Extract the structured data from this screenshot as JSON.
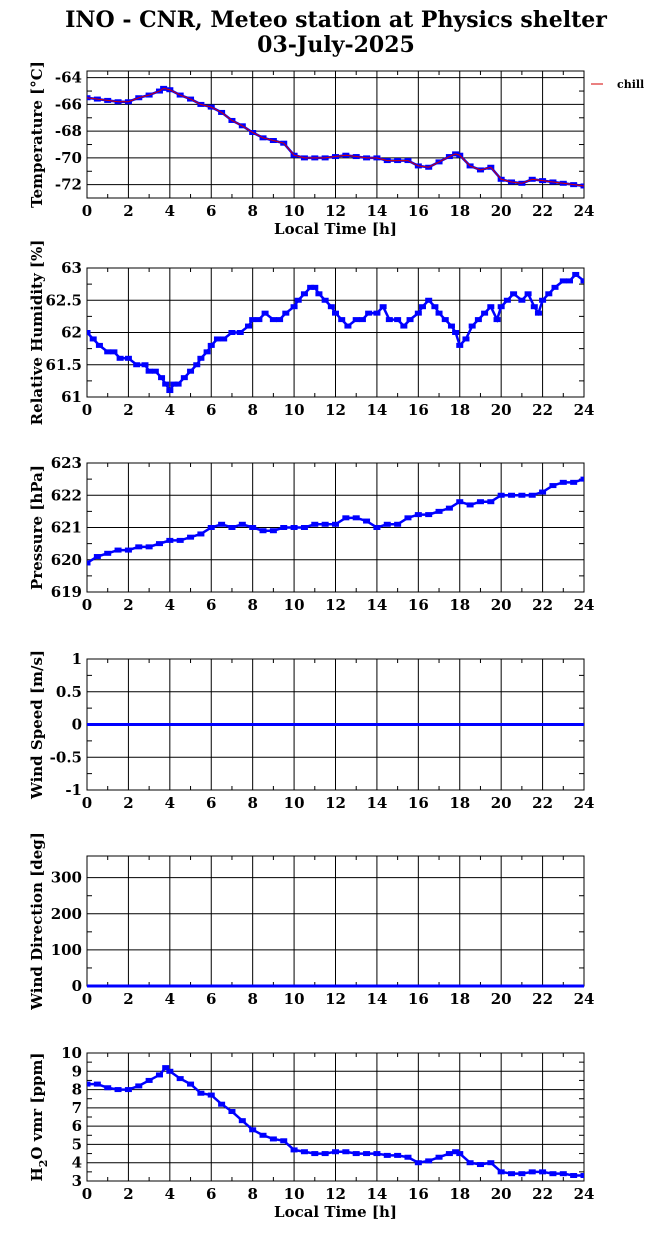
{
  "title_line1": "INO - CNR, Meteo station at Physics shelter",
  "title_line2": "03-July-2025",
  "x_axis_label": "Local Time [h]",
  "colors": {
    "data": "#0000ff",
    "chill": "#d40000",
    "axis": "#000000"
  },
  "chart_data": [
    {
      "type": "scatter",
      "ylabel": "Temperature [°C]",
      "xlim": [
        0,
        24
      ],
      "ylim": [
        -73,
        -63.5
      ],
      "x_ticks": [
        0,
        2,
        4,
        6,
        8,
        10,
        12,
        14,
        16,
        18,
        20,
        22,
        24
      ],
      "y_ticks": [
        -64,
        -66,
        -68,
        -70,
        -72
      ],
      "show_xlabel": true,
      "legend": {
        "label": "chill",
        "position": "outside-right-top"
      },
      "series": [
        {
          "name": "",
          "color": "#0000ff",
          "x": [
            0,
            0.5,
            1,
            1.5,
            2,
            2.5,
            3,
            3.5,
            3.7,
            4,
            4.5,
            5,
            5.5,
            6,
            6.5,
            7,
            7.5,
            8,
            8.5,
            9,
            9.5,
            10,
            10.5,
            11,
            11.5,
            12,
            12.5,
            13,
            13.5,
            14,
            14.5,
            15,
            15.5,
            16,
            16.5,
            17,
            17.5,
            17.8,
            18,
            18.5,
            19,
            19.5,
            20,
            20.5,
            21,
            21.5,
            22,
            22.5,
            23,
            23.5,
            24
          ],
          "y": [
            -65.5,
            -65.6,
            -65.7,
            -65.8,
            -65.8,
            -65.5,
            -65.3,
            -65,
            -64.8,
            -64.9,
            -65.3,
            -65.6,
            -66,
            -66.2,
            -66.6,
            -67.2,
            -67.6,
            -68.1,
            -68.5,
            -68.7,
            -68.9,
            -69.8,
            -70,
            -70,
            -70,
            -69.9,
            -69.8,
            -69.9,
            -70,
            -70,
            -70.2,
            -70.2,
            -70.2,
            -70.6,
            -70.7,
            -70.3,
            -69.9,
            -69.7,
            -69.8,
            -70.6,
            -70.9,
            -70.7,
            -71.6,
            -71.8,
            -71.9,
            -71.6,
            -71.7,
            -71.8,
            -71.9,
            -72,
            -72.1
          ]
        },
        {
          "name": "chill",
          "color": "#d40000",
          "x": [
            0,
            0.5,
            1,
            1.5,
            2,
            2.5,
            3,
            3.5,
            3.7,
            4,
            4.5,
            5,
            5.5,
            6,
            6.5,
            7,
            7.5,
            8,
            8.5,
            9,
            9.5,
            10,
            10.5,
            11,
            11.5,
            12,
            12.5,
            13,
            13.5,
            14,
            14.5,
            15,
            15.5,
            16,
            16.5,
            17,
            17.5,
            17.8,
            18,
            18.5,
            19,
            19.5,
            20,
            20.5,
            21,
            21.5,
            22,
            22.5,
            23,
            23.5,
            24
          ],
          "y": [
            -65.5,
            -65.6,
            -65.7,
            -65.8,
            -65.8,
            -65.5,
            -65.3,
            -65,
            -64.8,
            -64.9,
            -65.3,
            -65.6,
            -66,
            -66.2,
            -66.6,
            -67.2,
            -67.6,
            -68.1,
            -68.5,
            -68.7,
            -68.9,
            -69.8,
            -70,
            -70,
            -70,
            -69.9,
            -69.8,
            -69.9,
            -70,
            -70,
            -70.2,
            -70.2,
            -70.2,
            -70.6,
            -70.7,
            -70.3,
            -69.9,
            -69.7,
            -69.8,
            -70.6,
            -70.9,
            -70.7,
            -71.6,
            -71.8,
            -71.9,
            -71.6,
            -71.7,
            -71.8,
            -71.9,
            -72,
            -72.1
          ]
        }
      ]
    },
    {
      "type": "scatter",
      "ylabel": "Relative Humidity [%]",
      "xlim": [
        0,
        24
      ],
      "ylim": [
        61,
        63
      ],
      "x_ticks": [
        0,
        2,
        4,
        6,
        8,
        10,
        12,
        14,
        16,
        18,
        20,
        22,
        24
      ],
      "y_ticks": [
        61,
        61.5,
        62,
        62.5,
        63
      ],
      "show_xlabel": false,
      "series": [
        {
          "name": "",
          "color": "#0000ff",
          "x": [
            0,
            0.3,
            0.6,
            1,
            1.3,
            1.6,
            2,
            2.4,
            2.8,
            3,
            3.3,
            3.6,
            3.8,
            4,
            4.2,
            4.4,
            4.7,
            5,
            5.3,
            5.5,
            5.8,
            6,
            6.3,
            6.6,
            7,
            7.4,
            7.8,
            8,
            8.3,
            8.6,
            9,
            9.3,
            9.6,
            10,
            10.2,
            10.5,
            10.8,
            11,
            11.2,
            11.5,
            11.8,
            12,
            12.3,
            12.6,
            13,
            13.3,
            13.6,
            14,
            14.3,
            14.6,
            15,
            15.3,
            15.6,
            16,
            16.2,
            16.5,
            16.8,
            17,
            17.3,
            17.6,
            17.8,
            18,
            18.3,
            18.6,
            18.9,
            19.2,
            19.5,
            19.8,
            20,
            20.3,
            20.6,
            21,
            21.3,
            21.6,
            21.8,
            22,
            22.3,
            22.6,
            23,
            23.3,
            23.6,
            24
          ],
          "y": [
            62,
            61.9,
            61.8,
            61.7,
            61.7,
            61.6,
            61.6,
            61.5,
            61.5,
            61.4,
            61.4,
            61.3,
            61.2,
            61.1,
            61.2,
            61.2,
            61.3,
            61.4,
            61.5,
            61.6,
            61.7,
            61.8,
            61.9,
            61.9,
            62,
            62,
            62.1,
            62.2,
            62.2,
            62.3,
            62.2,
            62.2,
            62.3,
            62.4,
            62.5,
            62.6,
            62.7,
            62.7,
            62.6,
            62.5,
            62.4,
            62.3,
            62.2,
            62.1,
            62.2,
            62.2,
            62.3,
            62.3,
            62.4,
            62.2,
            62.2,
            62.1,
            62.2,
            62.3,
            62.4,
            62.5,
            62.4,
            62.3,
            62.2,
            62.1,
            62,
            61.8,
            61.9,
            62.1,
            62.2,
            62.3,
            62.4,
            62.2,
            62.4,
            62.5,
            62.6,
            62.5,
            62.6,
            62.4,
            62.3,
            62.5,
            62.6,
            62.7,
            62.8,
            62.8,
            62.9,
            62.8
          ]
        }
      ]
    },
    {
      "type": "scatter",
      "ylabel": "Pressure [hPa]",
      "xlim": [
        0,
        24
      ],
      "ylim": [
        619,
        623
      ],
      "x_ticks": [
        0,
        2,
        4,
        6,
        8,
        10,
        12,
        14,
        16,
        18,
        20,
        22,
        24
      ],
      "y_ticks": [
        619,
        620,
        621,
        622,
        623
      ],
      "show_xlabel": false,
      "series": [
        {
          "name": "",
          "color": "#0000ff",
          "x": [
            0,
            0.5,
            1,
            1.5,
            2,
            2.5,
            3,
            3.5,
            4,
            4.5,
            5,
            5.5,
            6,
            6.5,
            7,
            7.5,
            8,
            8.5,
            9,
            9.5,
            10,
            10.5,
            11,
            11.5,
            12,
            12.5,
            13,
            13.5,
            14,
            14.5,
            15,
            15.5,
            16,
            16.5,
            17,
            17.5,
            18,
            18.5,
            19,
            19.5,
            20,
            20.5,
            21,
            21.5,
            22,
            22.5,
            23,
            23.5,
            24
          ],
          "y": [
            619.9,
            620.1,
            620.2,
            620.3,
            620.3,
            620.4,
            620.4,
            620.5,
            620.6,
            620.6,
            620.7,
            620.8,
            621,
            621.1,
            621,
            621.1,
            621,
            620.9,
            620.9,
            621,
            621,
            621,
            621.1,
            621.1,
            621.1,
            621.3,
            621.3,
            621.2,
            621,
            621.1,
            621.1,
            621.3,
            621.4,
            621.4,
            621.5,
            621.6,
            621.8,
            621.7,
            621.8,
            621.8,
            622,
            622,
            622,
            622,
            622.1,
            622.3,
            622.4,
            622.4,
            622.5
          ]
        }
      ]
    },
    {
      "type": "line",
      "ylabel": "Wind Speed [m/s]",
      "xlim": [
        0,
        24
      ],
      "ylim": [
        -1,
        1
      ],
      "x_ticks": [
        0,
        2,
        4,
        6,
        8,
        10,
        12,
        14,
        16,
        18,
        20,
        22,
        24
      ],
      "y_ticks": [
        -1,
        -0.5,
        0,
        0.5,
        1
      ],
      "show_xlabel": false,
      "series": [
        {
          "name": "",
          "color": "#0000ff",
          "x": [
            0,
            24
          ],
          "y": [
            0,
            0
          ]
        }
      ]
    },
    {
      "type": "line",
      "ylabel": "Wind Direction [deg]",
      "xlim": [
        0,
        24
      ],
      "ylim": [
        0,
        360
      ],
      "x_ticks": [
        0,
        2,
        4,
        6,
        8,
        10,
        12,
        14,
        16,
        18,
        20,
        22,
        24
      ],
      "y_ticks": [
        0,
        100,
        200,
        300
      ],
      "show_xlabel": false,
      "series": [
        {
          "name": "",
          "color": "#0000ff",
          "x": [
            0,
            24
          ],
          "y": [
            0,
            0
          ]
        }
      ]
    },
    {
      "type": "scatter",
      "ylabel": "H2O vmr [ppm]",
      "xlim": [
        0,
        24
      ],
      "ylim": [
        3,
        10
      ],
      "x_ticks": [
        0,
        2,
        4,
        6,
        8,
        10,
        12,
        14,
        16,
        18,
        20,
        22,
        24
      ],
      "y_ticks": [
        3,
        4,
        5,
        6,
        7,
        8,
        9,
        10
      ],
      "show_xlabel": true,
      "series": [
        {
          "name": "",
          "color": "#0000ff",
          "x": [
            0,
            0.5,
            1,
            1.5,
            2,
            2.5,
            3,
            3.5,
            3.8,
            4,
            4.5,
            5,
            5.5,
            6,
            6.5,
            7,
            7.5,
            8,
            8.5,
            9,
            9.5,
            10,
            10.5,
            11,
            11.5,
            12,
            12.5,
            13,
            13.5,
            14,
            14.5,
            15,
            15.5,
            16,
            16.5,
            17,
            17.5,
            17.8,
            18,
            18.5,
            19,
            19.5,
            20,
            20.5,
            21,
            21.5,
            22,
            22.5,
            23,
            23.5,
            24
          ],
          "y": [
            8.3,
            8.3,
            8.1,
            8,
            8,
            8.2,
            8.5,
            8.8,
            9.2,
            9,
            8.6,
            8.3,
            7.8,
            7.7,
            7.2,
            6.8,
            6.3,
            5.8,
            5.5,
            5.3,
            5.2,
            4.7,
            4.6,
            4.5,
            4.5,
            4.6,
            4.6,
            4.5,
            4.5,
            4.5,
            4.4,
            4.4,
            4.3,
            4,
            4.1,
            4.3,
            4.5,
            4.6,
            4.5,
            4,
            3.9,
            4,
            3.5,
            3.4,
            3.4,
            3.5,
            3.5,
            3.4,
            3.4,
            3.3,
            3.3
          ]
        }
      ]
    }
  ]
}
